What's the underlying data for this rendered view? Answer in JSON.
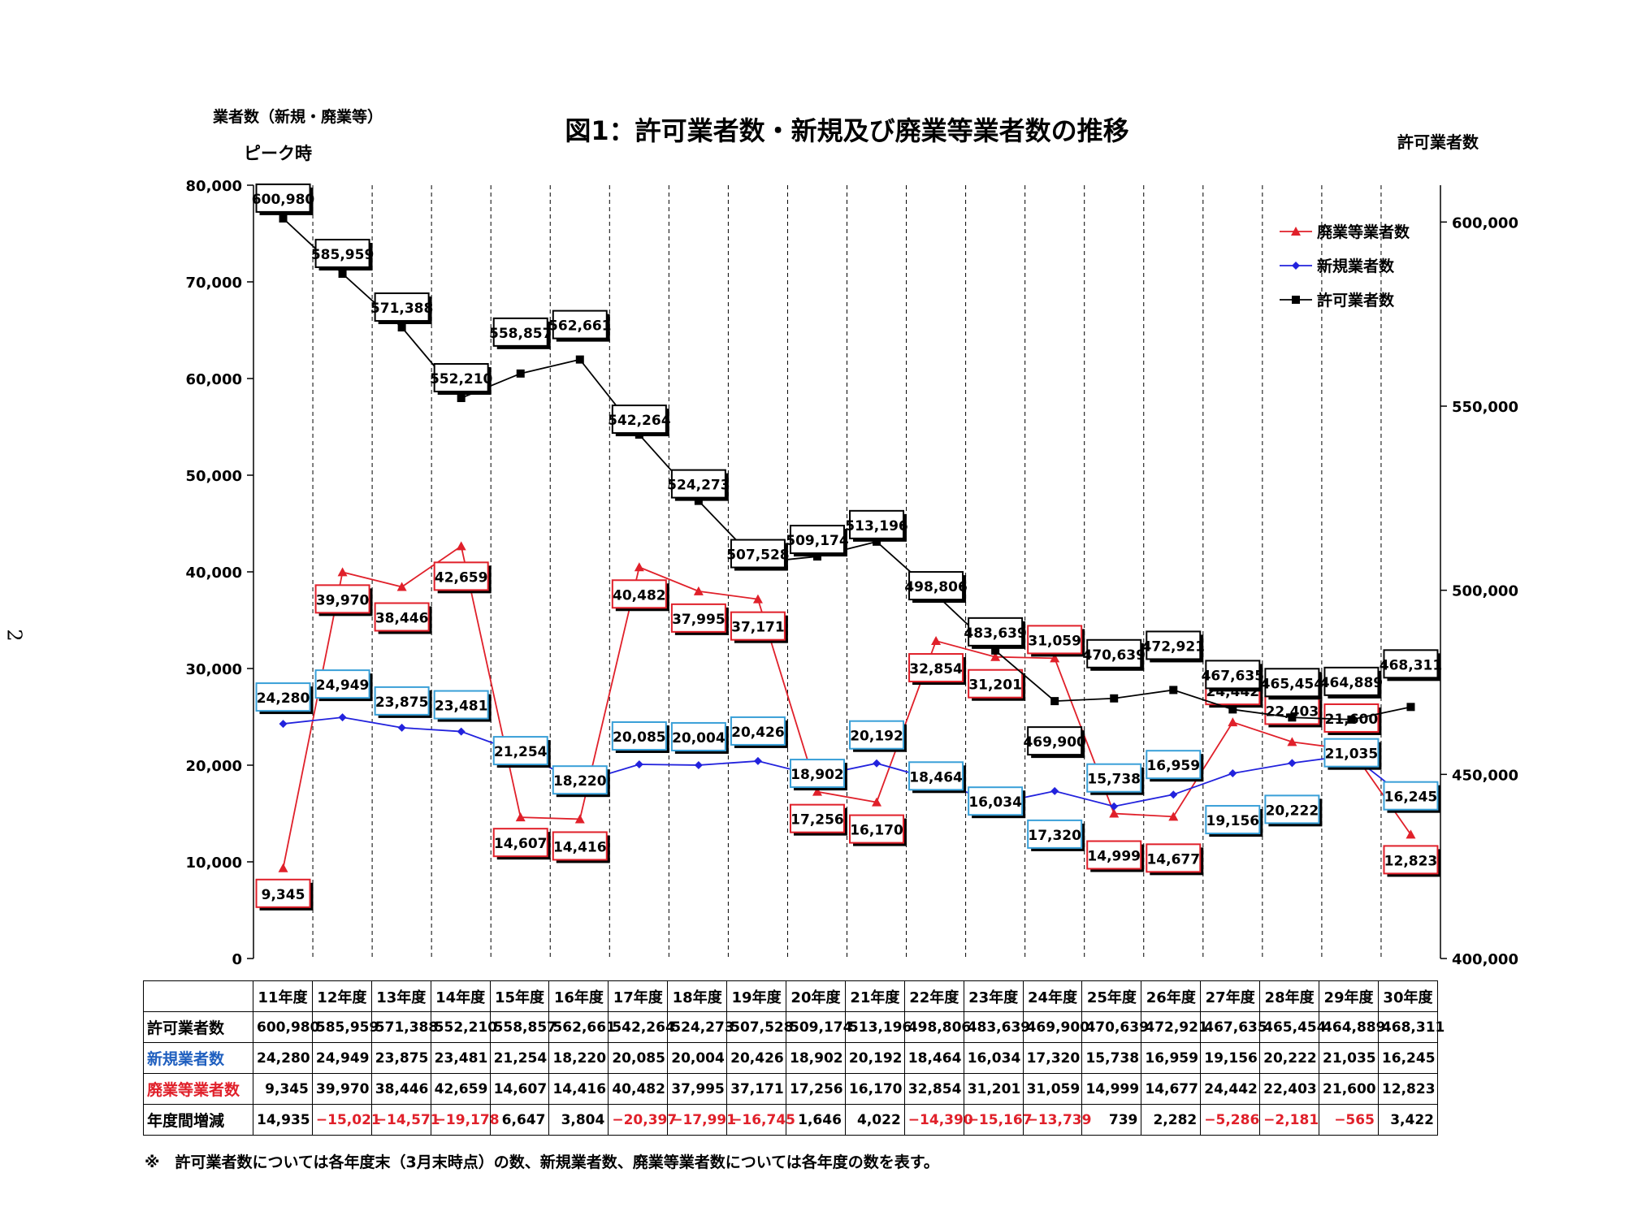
{
  "chart_data": {
    "type": "line",
    "title": "図1：許可業者数・新規及び廃業等業者数の推移",
    "left_axis_title": "業者数（新規・廃業等）",
    "right_axis_title": "許可業者数",
    "peak_label": "ピーク時",
    "categories": [
      "11年度",
      "12年度",
      "13年度",
      "14年度",
      "15年度",
      "16年度",
      "17年度",
      "18年度",
      "19年度",
      "20年度",
      "21年度",
      "22年度",
      "23年度",
      "24年度",
      "25年度",
      "26年度",
      "27年度",
      "28年度",
      "29年度",
      "30年度"
    ],
    "left_ylim": [
      0,
      80000
    ],
    "left_ticks": [
      "0",
      "10,000",
      "20,000",
      "30,000",
      "40,000",
      "50,000",
      "60,000",
      "70,000",
      "80,000"
    ],
    "right_ylim": [
      400000,
      610000
    ],
    "right_ticks": [
      "400,000",
      "450,000",
      "500,000",
      "550,000",
      "600,000"
    ],
    "series": [
      {
        "name": "廃業等業者数",
        "axis": "left",
        "color": "#e0202a",
        "marker": "triangle",
        "values": [
          9345,
          39970,
          38446,
          42659,
          14607,
          14416,
          40482,
          37995,
          37171,
          17256,
          16170,
          32854,
          31201,
          31059,
          14999,
          14677,
          24442,
          22403,
          21600,
          12823
        ],
        "labels": [
          "9,345",
          "39,970",
          "38,446",
          "42,659",
          "14,607",
          "14,416",
          "40,482",
          "37,995",
          "37,171",
          "17,256",
          "16,170",
          "32,854",
          "31,201",
          "31,059",
          "14,999",
          "14,677",
          "24,442",
          "22,403",
          "21,600",
          "12,823"
        ]
      },
      {
        "name": "新規業者数",
        "axis": "left",
        "color": "#2222dd",
        "marker": "diamond",
        "values": [
          24280,
          24949,
          23875,
          23481,
          21254,
          18220,
          20085,
          20004,
          20426,
          18902,
          20192,
          18464,
          16034,
          17320,
          15738,
          16959,
          19156,
          20222,
          21035,
          16245
        ],
        "labels": [
          "24,280",
          "24,949",
          "23,875",
          "23,481",
          "21,254",
          "18,220",
          "20,085",
          "20,004",
          "20,426",
          "18,902",
          "20,192",
          "18,464",
          "16,034",
          "17,320",
          "15,738",
          "16,959",
          "19,156",
          "20,222",
          "21,035",
          "16,245"
        ]
      },
      {
        "name": "許可業者数",
        "axis": "right",
        "color": "#000000",
        "marker": "square",
        "values": [
          600980,
          585959,
          571388,
          552210,
          558857,
          562661,
          542264,
          524273,
          507528,
          509174,
          513196,
          498806,
          483639,
          469900,
          470639,
          472921,
          467635,
          465454,
          464889,
          468311
        ],
        "labels": [
          "600,980",
          "585,959",
          "571,388",
          "552,210",
          "558,857",
          "562,661",
          "542,264",
          "524,273",
          "507,528",
          "509,174",
          "513,196",
          "498,806",
          "483,639",
          "469,900",
          "470,639",
          "472,921",
          "467,635",
          "465,454",
          "464,889",
          "468,311"
        ]
      }
    ],
    "legend": "top-right"
  },
  "table": {
    "rows": [
      {
        "label": "許可業者数",
        "class": "",
        "values": [
          "600,980",
          "585,959",
          "571,388",
          "552,210",
          "558,857",
          "562,661",
          "542,264",
          "524,273",
          "507,528",
          "509,174",
          "513,196",
          "498,806",
          "483,639",
          "469,900",
          "470,639",
          "472,921",
          "467,635",
          "465,454",
          "464,889",
          "468,311"
        ]
      },
      {
        "label": "新規業者数",
        "class": "blue",
        "values": [
          "24,280",
          "24,949",
          "23,875",
          "23,481",
          "21,254",
          "18,220",
          "20,085",
          "20,004",
          "20,426",
          "18,902",
          "20,192",
          "18,464",
          "16,034",
          "17,320",
          "15,738",
          "16,959",
          "19,156",
          "20,222",
          "21,035",
          "16,245"
        ]
      },
      {
        "label": "廃業等業者数",
        "class": "red",
        "values": [
          "9,345",
          "39,970",
          "38,446",
          "42,659",
          "14,607",
          "14,416",
          "40,482",
          "37,995",
          "37,171",
          "17,256",
          "16,170",
          "32,854",
          "31,201",
          "31,059",
          "14,999",
          "14,677",
          "24,442",
          "22,403",
          "21,600",
          "12,823"
        ]
      },
      {
        "label": "年度間増減",
        "class": "",
        "values": [
          "14,935",
          "−15,021",
          "−14,571",
          "−19,178",
          "6,647",
          "3,804",
          "−20,397",
          "−17,991",
          "−16,745",
          "1,646",
          "4,022",
          "−14,390",
          "−15,167",
          "−13,739",
          "739",
          "2,282",
          "−5,286",
          "−2,181",
          "−565",
          "3,422"
        ]
      }
    ]
  },
  "footnote": "※　許可業者数については各年度末（3月末時点）の数、新規業者数、廃業等業者数については各年度の数を表す。",
  "page_number": "2"
}
